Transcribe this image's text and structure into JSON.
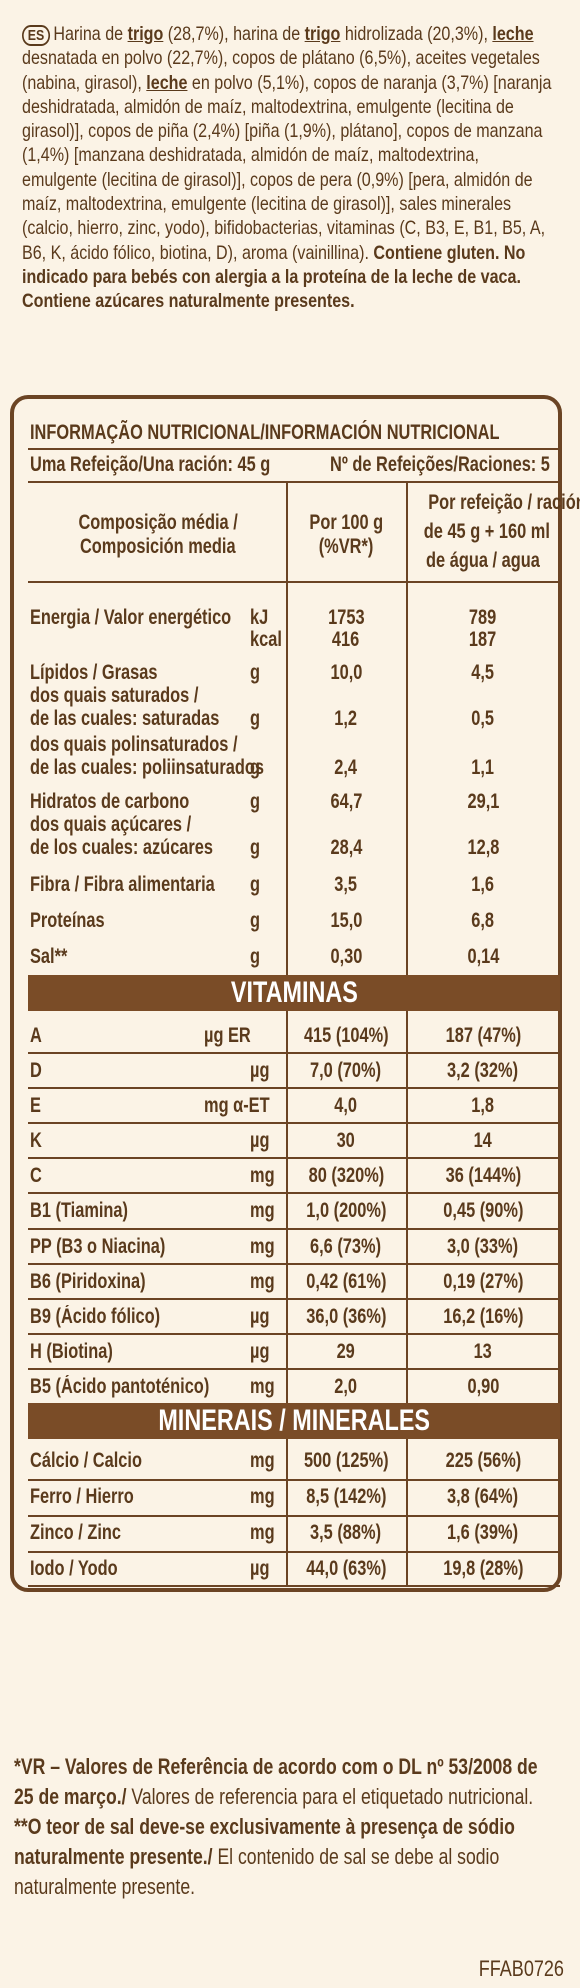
{
  "ingredients": {
    "country_badge": "ES",
    "segments": [
      {
        "t": "Harina de ",
        "s": ""
      },
      {
        "t": "trigo",
        "s": "bu"
      },
      {
        "t": " (28,7%), harina de ",
        "s": ""
      },
      {
        "t": "trigo",
        "s": "bu"
      },
      {
        "t": " hidrolizada (20,3%), ",
        "s": ""
      },
      {
        "t": "leche",
        "s": "bu"
      },
      {
        "t": " desnatada en polvo (22,7%), copos de plátano (6,5%), aceites vegetales (nabina, girasol), ",
        "s": ""
      },
      {
        "t": "leche",
        "s": "bu"
      },
      {
        "t": " en polvo (5,1%), copos de naranja (3,7%) [naranja deshidratada, almidón de maíz, maltodextrina, emulgente (lecitina de girasol)], copos de piña (2,4%) [piña (1,9%), plátano], copos de manzana (1,4%) [manzana deshidratada, almidón de maíz, maltodextrina, emulgente (lecitina de girasol)], copos de pera (0,9%) [pera, almidón de maíz, maltodextrina, emulgente (lecitina de girasol)], sales minerales (calcio, hierro, zinc, yodo), bifidobacterias, vitaminas (C, B3, E, B1, B5, A, B6, K, ácido fólico, biotina, D), aroma (vainillina). ",
        "s": ""
      },
      {
        "t": "Contiene gluten. No indicado para bebés con alergia a la proteína de la leche de vaca. Contiene azúcares naturalmente presentes.",
        "s": "b"
      }
    ]
  },
  "table": {
    "title": "INFORMAÇÃO NUTRICIONAL/INFORMACIÓN NUTRICIONAL",
    "serving": "Uma Refeição/Una ración: 45 g",
    "servings_count": "Nº de Refeições/Raciones: 5",
    "col1": [
      "Composição média /",
      "Composición media"
    ],
    "col2": [
      "Por 100 g",
      "(%VR*)"
    ],
    "col3": [
      "Por refeição / ración",
      "de 45 g + 160 ml",
      "de água / agua"
    ],
    "nutrients": [
      {
        "label": "Energia / Valor energético",
        "unit": "kJ",
        "per100": "1753",
        "perserv": "789"
      },
      {
        "label": "",
        "unit": "kcal",
        "per100": "416",
        "perserv": "187"
      },
      {
        "label": "Lípidos / Grasas",
        "unit": "g",
        "per100": "10,0",
        "perserv": "4,5"
      },
      {
        "label": "dos quais saturados /",
        "unit": "",
        "per100": "",
        "perserv": ""
      },
      {
        "label": "de las cuales: saturadas",
        "unit": "g",
        "per100": "1,2",
        "perserv": "0,5"
      },
      {
        "label": "dos quais polinsaturados /",
        "unit": "",
        "per100": "",
        "perserv": ""
      },
      {
        "label": "de las cuales: poliinsaturados",
        "unit": "g",
        "per100": "2,4",
        "perserv": "1,1"
      },
      {
        "label": "Hidratos de carbono",
        "unit": "g",
        "per100": "64,7",
        "perserv": "29,1"
      },
      {
        "label": "dos quais açúcares /",
        "unit": "",
        "per100": "",
        "perserv": ""
      },
      {
        "label": "de los cuales: azúcares",
        "unit": "g",
        "per100": "28,4",
        "perserv": "12,8"
      },
      {
        "label": "Fibra / Fibra alimentaria",
        "unit": "g",
        "per100": "3,5",
        "perserv": "1,6"
      },
      {
        "label": "Proteínas",
        "unit": "g",
        "per100": "15,0",
        "perserv": "6,8"
      },
      {
        "label": "Sal**",
        "unit": "g",
        "per100": "0,30",
        "perserv": "0,14"
      }
    ],
    "vitamins_title": "VITAMINAS",
    "vitamins": [
      {
        "label": "A",
        "unit": "µg ER",
        "per100": "415 (104%)",
        "perserv": "187 (47%)"
      },
      {
        "label": "D",
        "unit": "µg",
        "per100": "7,0 (70%)",
        "perserv": "3,2 (32%)"
      },
      {
        "label": "E",
        "unit": "mg α-ET",
        "per100": "4,0",
        "perserv": "1,8"
      },
      {
        "label": "K",
        "unit": "µg",
        "per100": "30",
        "perserv": "14"
      },
      {
        "label": "C",
        "unit": "mg",
        "per100": "80 (320%)",
        "perserv": "36 (144%)"
      },
      {
        "label": "B1 (Tiamina)",
        "unit": "mg",
        "per100": "1,0 (200%)",
        "perserv": "0,45 (90%)"
      },
      {
        "label": "PP (B3 o Niacina)",
        "unit": "mg",
        "per100": "6,6 (73%)",
        "perserv": "3,0 (33%)"
      },
      {
        "label": "B6 (Piridoxina)",
        "unit": "mg",
        "per100": "0,42 (61%)",
        "perserv": "0,19 (27%)"
      },
      {
        "label": "B9 (Ácido fólico)",
        "unit": "µg",
        "per100": "36,0 (36%)",
        "perserv": "16,2 (16%)"
      },
      {
        "label": "H (Biotina)",
        "unit": "µg",
        "per100": "29",
        "perserv": "13"
      },
      {
        "label": "B5 (Ácido pantoténico)",
        "unit": "mg",
        "per100": "2,0",
        "perserv": "0,90"
      }
    ],
    "minerals_title": "MINERAIS / MINERALES",
    "minerals": [
      {
        "label": "Cálcio / Calcio",
        "unit": "mg",
        "per100": "500 (125%)",
        "perserv": "225 (56%)"
      },
      {
        "label": "Ferro / Hierro",
        "unit": "mg",
        "per100": "8,5 (142%)",
        "perserv": "3,8 (64%)"
      },
      {
        "label": "Zinco / Zinc",
        "unit": "mg",
        "per100": "3,5 (88%)",
        "perserv": "1,6 (39%)"
      },
      {
        "label": "Iodo / Yodo",
        "unit": "µg",
        "per100": "44,0 (63%)",
        "perserv": "19,8 (28%)"
      }
    ]
  },
  "footer": {
    "vr_bold": "*VR – Valores de Referência de acordo com o DL nº 53/2008 de 25 de março./",
    "vr_normal": " Valores de referencia para el etiquetado nutricional.",
    "salt_bold": "**O teor de sal deve-se exclusivamente à presença de sódio naturalmente presente./",
    "salt_normal": " El contenido de sal se debe al sodio naturalmente presente."
  },
  "code": "FFAB0726",
  "colors": {
    "background": "#fbf3e6",
    "text": "#5a3a1c",
    "band": "#7a4c27",
    "band_text": "#ffffff"
  }
}
